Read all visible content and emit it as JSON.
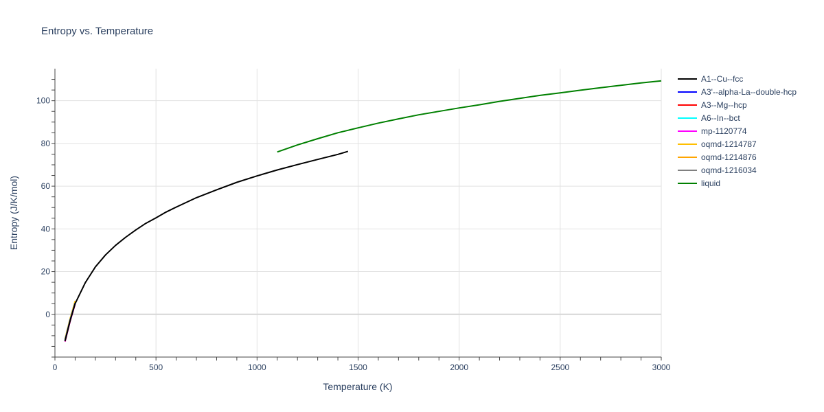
{
  "chart_data": {
    "type": "line",
    "title": "Entropy vs. Temperature",
    "xlabel": "Temperature (K)",
    "ylabel": "Entropy (J/K/mol)",
    "xlim": [
      0,
      3000
    ],
    "ylim": [
      -20,
      115
    ],
    "x_ticks": [
      0,
      500,
      1000,
      1500,
      2000,
      2500,
      3000
    ],
    "y_ticks": [
      0,
      20,
      40,
      60,
      80,
      100
    ],
    "grid": true,
    "legend_position": "right",
    "series": [
      {
        "name": "A1--Cu--fcc",
        "color": "#000000",
        "x": [
          50,
          75,
          100,
          150,
          200,
          250,
          300,
          350,
          400,
          450,
          500,
          550,
          600,
          700,
          800,
          900,
          1000,
          1100,
          1200,
          1300,
          1400,
          1450
        ],
        "y": [
          -12.5,
          -3,
          5,
          14.8,
          22.2,
          27.8,
          32.3,
          36.1,
          39.5,
          42.6,
          45.2,
          47.9,
          50.2,
          54.6,
          58.3,
          61.8,
          64.8,
          67.6,
          70.1,
          72.5,
          74.9,
          76.3
        ]
      },
      {
        "name": "A3'--alpha-La--double-hcp",
        "color": "#0000ff",
        "x": [
          50,
          75,
          100
        ],
        "y": [
          -12.3,
          -2.8,
          5.2
        ]
      },
      {
        "name": "A3--Mg--hcp",
        "color": "#ff0000",
        "x": [
          50,
          75,
          100
        ],
        "y": [
          -12.6,
          -3.1,
          5.0
        ]
      },
      {
        "name": "A6--In--bct",
        "color": "#00ffff",
        "x": [
          50,
          75,
          100
        ],
        "y": [
          -12.2,
          -2.7,
          5.3
        ]
      },
      {
        "name": "mp-1120774",
        "color": "#ff00ff",
        "x": [
          50,
          75,
          100
        ],
        "y": [
          -12.8,
          -3.3,
          4.8
        ]
      },
      {
        "name": "oqmd-1214787",
        "color": "#ffbf00",
        "x": [
          50,
          75,
          100
        ],
        "y": [
          -11.5,
          -2.0,
          6.2
        ]
      },
      {
        "name": "oqmd-1214876",
        "color": "#ffa500",
        "x": [
          50,
          75,
          100
        ],
        "y": [
          -11.8,
          -2.3,
          5.9
        ]
      },
      {
        "name": "oqmd-1216034",
        "color": "#808080",
        "x": [
          50,
          75,
          100
        ],
        "y": [
          -12.4,
          -2.9,
          5.1
        ]
      },
      {
        "name": "liquid",
        "color": "#008000",
        "x": [
          1100,
          1200,
          1300,
          1400,
          1500,
          1600,
          1700,
          1800,
          1900,
          2000,
          2100,
          2200,
          2300,
          2400,
          2500,
          2600,
          2700,
          2800,
          2900,
          3000
        ],
        "y": [
          76.0,
          79.3,
          82.2,
          85.0,
          87.3,
          89.5,
          91.5,
          93.4,
          95.0,
          96.6,
          98.1,
          99.7,
          101.1,
          102.5,
          103.7,
          104.9,
          106.1,
          107.2,
          108.3,
          109.3
        ]
      }
    ]
  }
}
